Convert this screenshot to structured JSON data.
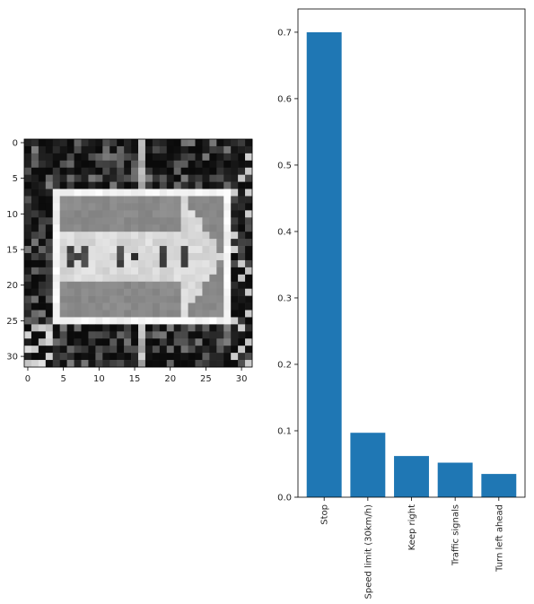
{
  "chart_data": [
    {
      "type": "heatmap",
      "title": "",
      "xlabel": "",
      "ylabel": "",
      "grid_size": [
        32,
        32
      ],
      "colormap": "grayscale",
      "x_ticks": [
        "0",
        "5",
        "10",
        "15",
        "20",
        "25",
        "30"
      ],
      "y_ticks": [
        "0",
        "5",
        "10",
        "15",
        "20",
        "25",
        "30"
      ],
      "xlim": [
        -0.5,
        31.5
      ],
      "ylim": [
        31.5,
        -0.5
      ]
    },
    {
      "type": "bar",
      "title": "",
      "xlabel": "",
      "ylabel": "",
      "categories": [
        "Stop",
        "Speed limit (30km/h)",
        "Keep right",
        "Traffic signals",
        "Turn left ahead"
      ],
      "values": [
        0.7,
        0.097,
        0.062,
        0.052,
        0.035
      ],
      "ylim": [
        0,
        0.735
      ],
      "y_ticks": [
        "0.0",
        "0.1",
        "0.2",
        "0.3",
        "0.4",
        "0.5",
        "0.6",
        "0.7"
      ],
      "bar_color": "#1f77b4",
      "grid": false,
      "xtick_rotation": 90
    }
  ]
}
